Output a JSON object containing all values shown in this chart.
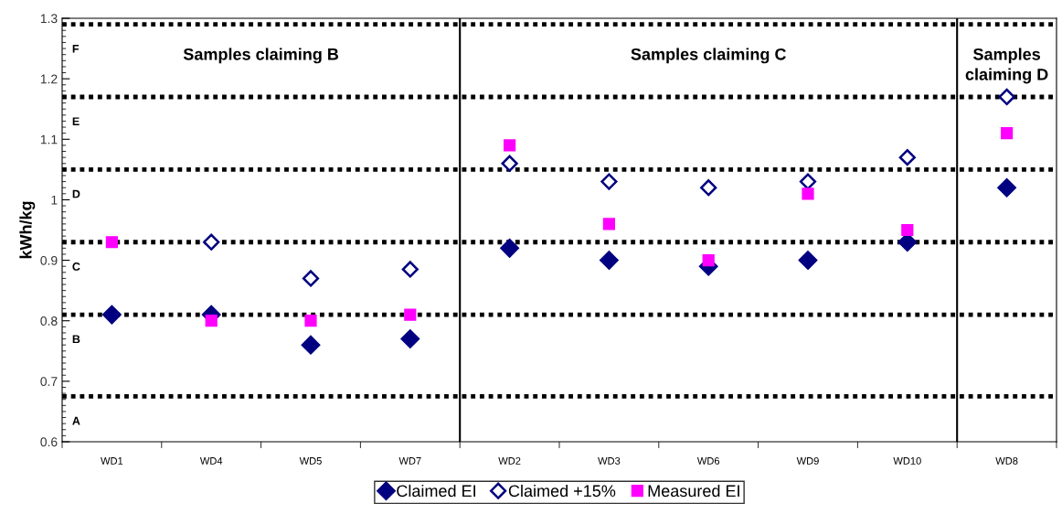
{
  "chart_data": {
    "type": "scatter",
    "ylabel": "kWh/kg",
    "categories": [
      "WD1",
      "WD4",
      "WD5",
      "WD7",
      "WD2",
      "WD3",
      "WD6",
      "WD9",
      "WD10",
      "WD8"
    ],
    "series": [
      {
        "name": "Claimed EI",
        "color": "#000080",
        "marker": "diamond",
        "values": [
          0.81,
          0.81,
          0.76,
          0.77,
          0.92,
          0.9,
          0.89,
          0.9,
          0.93,
          1.02
        ]
      },
      {
        "name": "Claimed +15%",
        "color": "#000080",
        "marker": "diamond",
        "values": [
          null,
          0.93,
          0.87,
          0.885,
          1.06,
          1.03,
          1.02,
          1.03,
          1.07,
          1.17
        ]
      },
      {
        "name": "Measured EI",
        "color": "#ff00ff",
        "marker": "square",
        "values": [
          0.93,
          0.8,
          0.8,
          0.81,
          1.09,
          0.96,
          0.9,
          1.01,
          0.95,
          1.11
        ]
      }
    ],
    "ylim": [
      0.6,
      1.3
    ],
    "yticks": [
      0.6,
      0.7,
      0.8,
      0.9,
      1,
      1.1,
      1.2,
      1.3
    ],
    "ref_lines": [
      {
        "axis": "y",
        "value": 0.675,
        "label": "A",
        "color": "#000000",
        "line_style": "dotted"
      },
      {
        "axis": "y",
        "value": 0.81,
        "label": "B",
        "color": "#000000",
        "line_style": "dotted"
      },
      {
        "axis": "y",
        "value": 0.93,
        "label": "C",
        "color": "#000000",
        "line_style": "dotted"
      },
      {
        "axis": "y",
        "value": 1.05,
        "label": "D",
        "color": "#000000",
        "line_style": "dotted"
      },
      {
        "axis": "y",
        "value": 1.17,
        "label": "E",
        "color": "#000000",
        "line_style": "dotted"
      },
      {
        "axis": "y",
        "value": 1.29,
        "label": "F",
        "color": "#000000",
        "line_style": "dotted"
      }
    ],
    "annotations": [
      "Samples claiming B",
      "Samples claiming C",
      "Samples\nclaiming D"
    ],
    "grid": false,
    "legend": "bottom"
  }
}
